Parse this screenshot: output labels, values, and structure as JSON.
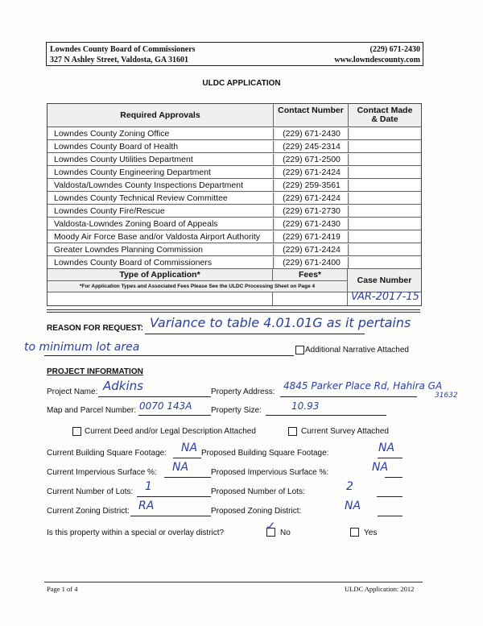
{
  "header": {
    "org": "Lowndes County Board of Commissioners",
    "address": "327 N Ashley Street, Valdosta, GA  31601",
    "phone": "(229) 671-2430",
    "website": "www.lowndescounty.com"
  },
  "title": "ULDC APPLICATION",
  "approvals": {
    "headers": {
      "required": "Required Approvals",
      "contact": "Contact Number",
      "made": "Contact Made & Date"
    },
    "rows": [
      {
        "name": "Lowndes County Zoning Office",
        "phone": "(229) 671-2430"
      },
      {
        "name": "Lowndes County Board of Health",
        "phone": "(229) 245-2314"
      },
      {
        "name": "Lowndes County Utilities Department",
        "phone": "(229) 671-2500"
      },
      {
        "name": "Lowndes County Engineering Department",
        "phone": "(229) 671-2424"
      },
      {
        "name": "Valdosta/Lowndes County Inspections Department",
        "phone": "(229) 259-3561"
      },
      {
        "name": "Lowndes County Technical Review Committee",
        "phone": "(229) 671-2424"
      },
      {
        "name": "Lowndes County Fire/Rescue",
        "phone": "(229) 671-2730"
      },
      {
        "name": "Valdosta-Lowndes Zoning Board of Appeals",
        "phone": "(229) 671-2430"
      },
      {
        "name": "Moody Air Force Base and/or Valdosta Airport Authority",
        "phone": "(229) 671-2419"
      },
      {
        "name": "Greater Lowndes Planning Commission",
        "phone": "(229) 671-2424"
      },
      {
        "name": "Lowndes County Board of Commissioners",
        "phone": "(229) 671-2400"
      }
    ],
    "type_label": "Type of Application*",
    "fees_label": "Fees*",
    "case_label": "Case Number",
    "note": "*For Application Types and Associated Fees Please See the ULDC Processing Sheet on Page 4",
    "case_number": "VAR-2017-15"
  },
  "reason": {
    "label": "REASON FOR REQUEST:",
    "line1": "Variance to table 4.01.01G as it pertains",
    "line2": "to minimum lot area",
    "narrative_label": "Additional Narrative Attached"
  },
  "project": {
    "heading": "PROJECT INFORMATION",
    "name_label": "Project Name:",
    "name": "Adkins",
    "address_label": "Property Address:",
    "address": "4845 Parker Place Rd, Hahira GA",
    "zip": "31632",
    "parcel_label": "Map and Parcel Number:",
    "parcel": "0070 143A",
    "size_label": "Property Size:",
    "size": "10.93",
    "deed_label": "Current Deed and/or Legal Description Attached",
    "survey_label": "Current Survey Attached",
    "cur_sqft_label": "Current Building Square Footage:",
    "cur_sqft": "NA",
    "prop_sqft_label": "Proposed Building Square Footage:",
    "prop_sqft": "NA",
    "cur_imp_label": "Current Impervious Surface %:",
    "cur_imp": "NA",
    "prop_imp_label": "Proposed Impervious Surface %:",
    "prop_imp": "NA",
    "cur_lots_label": "Current Number of Lots:",
    "cur_lots": "1",
    "prop_lots_label": "Proposed Number of Lots:",
    "prop_lots": "2",
    "cur_zone_label": "Current Zoning District:",
    "cur_zone": "RA",
    "prop_zone_label": "Proposed Zoning District:",
    "prop_zone": "NA",
    "overlay_label": "Is this property within a special or overlay district?",
    "no_label": "No",
    "yes_label": "Yes",
    "overlay_answer": "No"
  },
  "footer": {
    "page": "Page 1 of 4",
    "version": "ULDC Application: 2012"
  }
}
